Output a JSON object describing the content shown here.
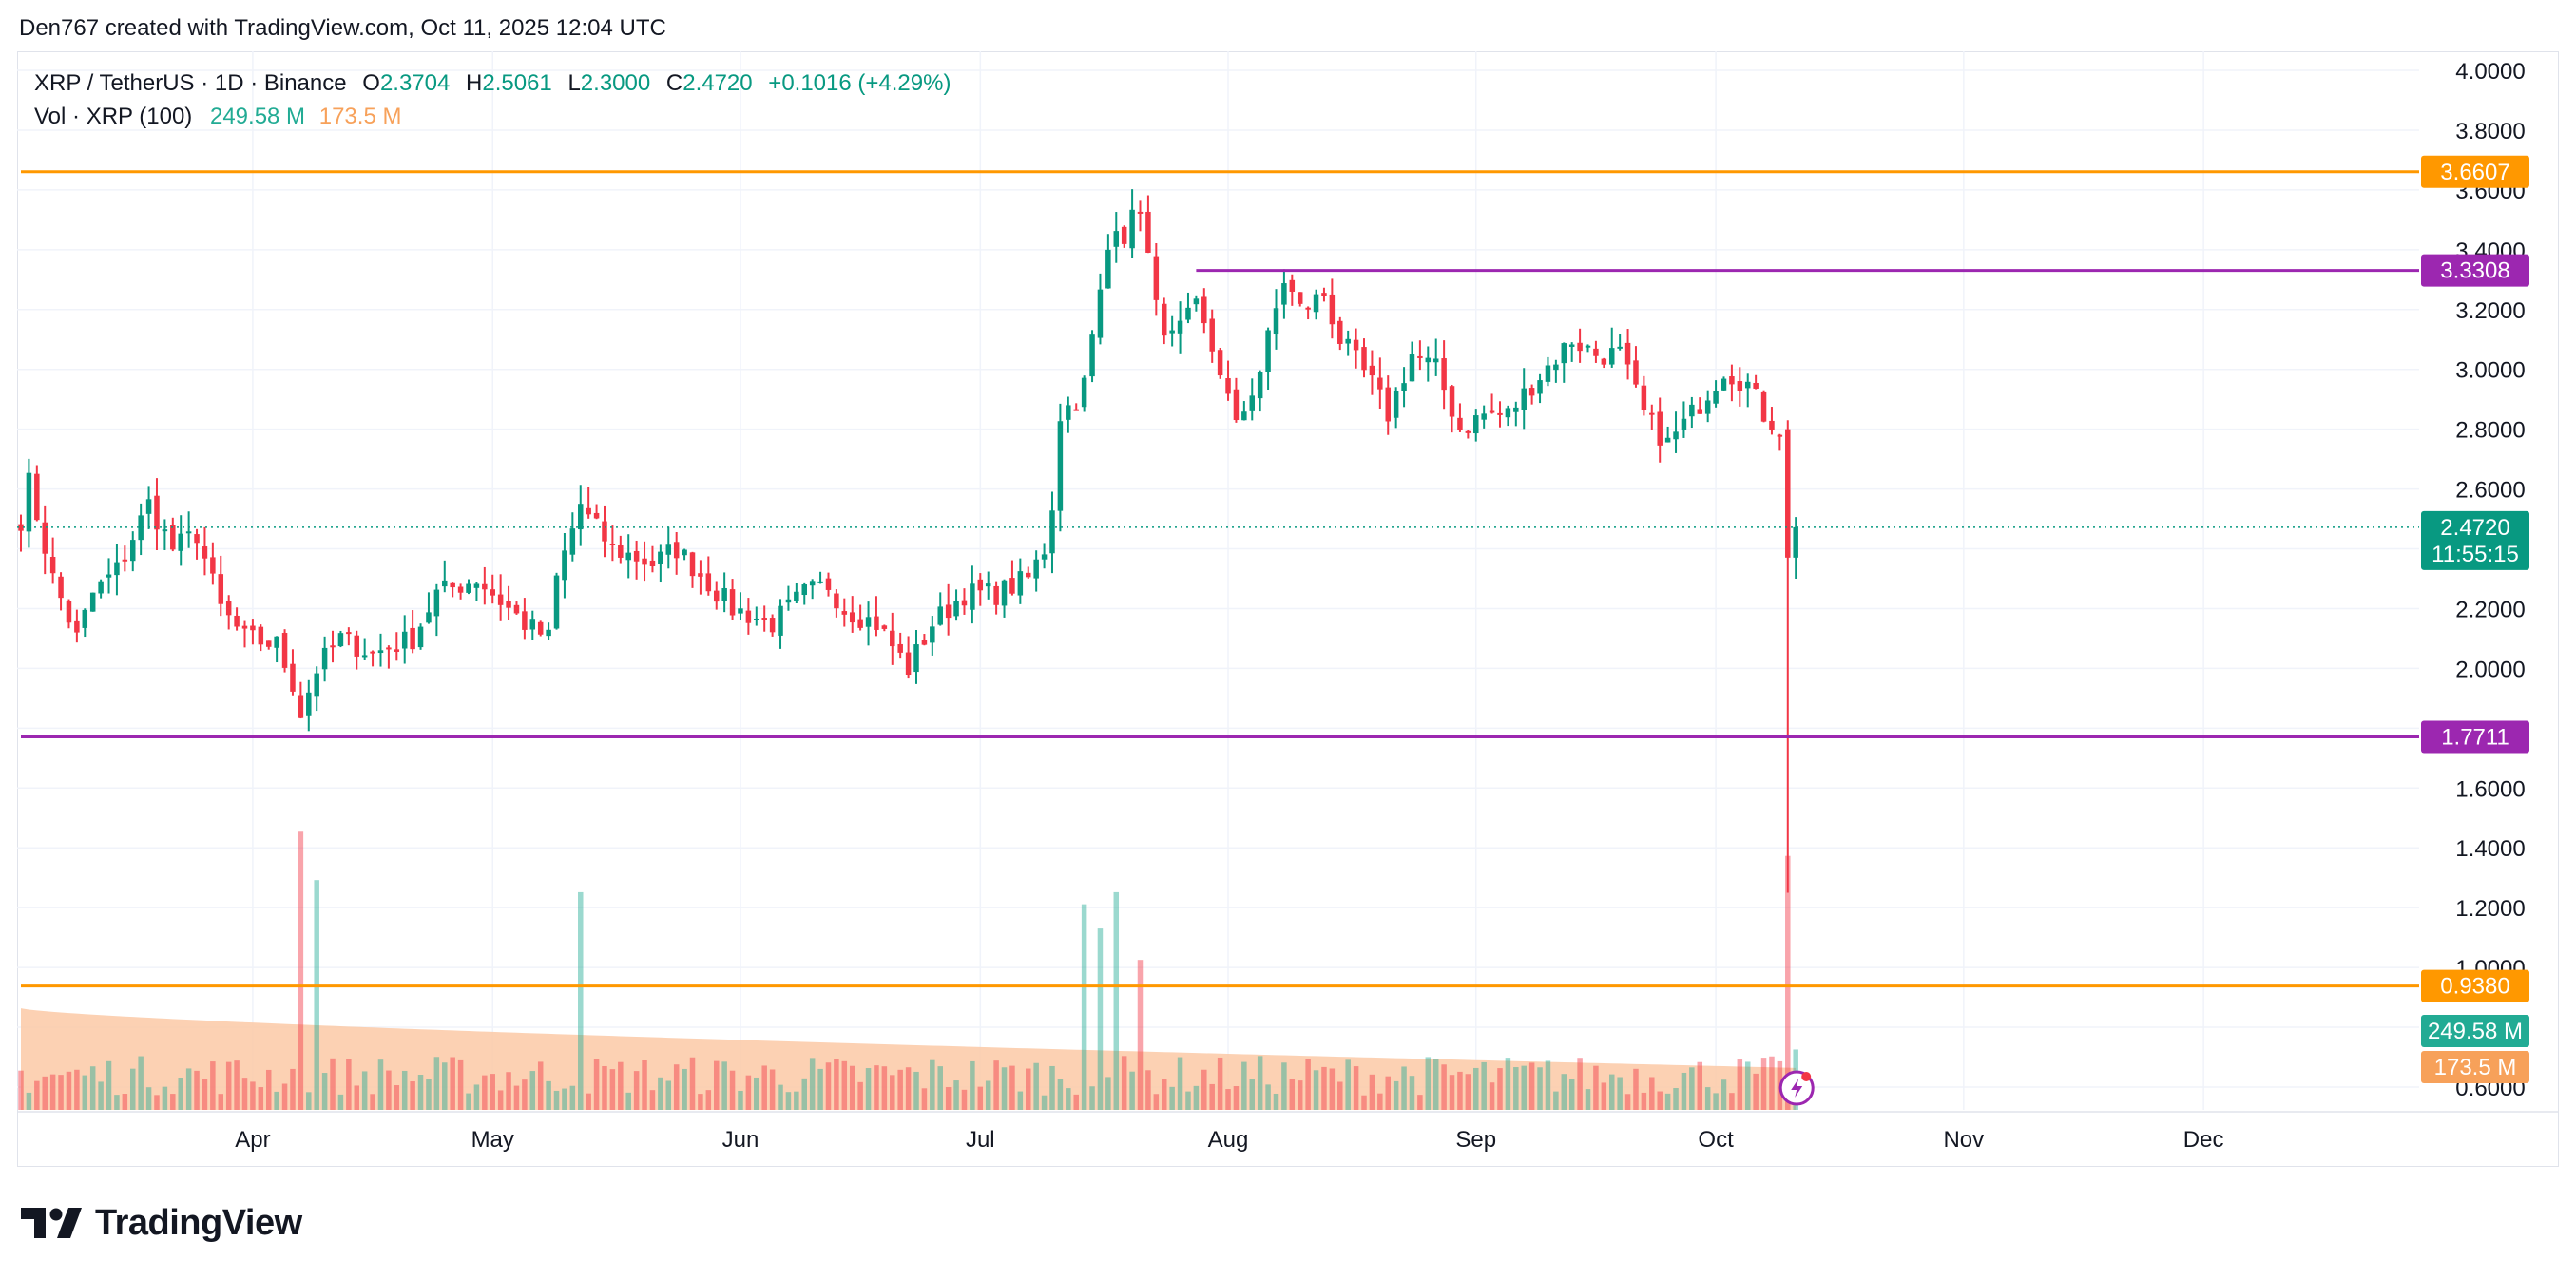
{
  "header": {
    "credit": "Den767 created with TradingView.com, Oct 11, 2025 12:04 UTC"
  },
  "legend": {
    "symbol": "XRP / TetherUS · 1D · Binance",
    "o_label": "O",
    "o_value": "2.3704",
    "h_label": "H",
    "h_value": "2.5061",
    "l_label": "L",
    "l_value": "2.3000",
    "c_label": "C",
    "c_value": "2.4720",
    "change": "+0.1016 (+4.29%)",
    "vol_label": "Vol · XRP (100)",
    "vol_value": "249.58 M",
    "vol_ma_value": "173.5 M"
  },
  "brand": {
    "name": "TradingView"
  },
  "colors": {
    "up": "#089981",
    "down": "#f23645",
    "orange_line": "#ff9800",
    "purple_line": "#9c27b0",
    "volume_ma_fill": "#fbc9a6"
  },
  "chart_data": {
    "type": "candlestick",
    "symbol": "XRPUSDT",
    "interval": "1D",
    "y_axis_ticks": [
      "4.0000",
      "3.8000",
      "3.6000",
      "3.4000",
      "3.2000",
      "3.0000",
      "2.8000",
      "2.6000",
      "2.4000",
      "2.2000",
      "2.0000",
      "1.8000",
      "1.6000",
      "1.4000",
      "1.2000",
      "1.0000",
      "0.8000",
      "0.6000"
    ],
    "y_axis_values": [
      4.0,
      3.8,
      3.6,
      3.4,
      3.2,
      3.0,
      2.8,
      2.6,
      2.4,
      2.2,
      2.0,
      1.8,
      1.6,
      1.4,
      1.2,
      1.0,
      0.8,
      0.6
    ],
    "ylim": [
      0.6,
      4.0
    ],
    "x_axis_ticks": [
      "Apr",
      "May",
      "Jun",
      "Jul",
      "Aug",
      "Sep",
      "Oct",
      "Nov",
      "Dec"
    ],
    "x_axis_dates": [
      "2025-04-01",
      "2025-05-01",
      "2025-06-01",
      "2025-07-01",
      "2025-08-01",
      "2025-09-01",
      "2025-10-01",
      "2025-11-01",
      "2025-12-01"
    ],
    "first_date": "2025-03-03",
    "last_date": "2025-10-11",
    "xlim": [
      "2025-03-03",
      "2025-12-25"
    ],
    "horizontal_levels": [
      {
        "value": 3.6607,
        "label": "3.6607",
        "color": "#ff9800",
        "start_date": "2025-03-03"
      },
      {
        "value": 3.3308,
        "label": "3.3308",
        "color": "#9c27b0",
        "start_date": "2025-07-28"
      },
      {
        "value": 1.7711,
        "label": "1.7711",
        "color": "#9c27b0",
        "start_date": "2025-03-03"
      },
      {
        "value": 0.938,
        "label": "0.9380",
        "color": "#ff9800",
        "start_date": "2025-03-03"
      }
    ],
    "last_price": {
      "value": 2.472,
      "label": "2.4720",
      "countdown": "11:55:15",
      "color": "#089981"
    },
    "volume_badge": {
      "label": "249.58 M",
      "color": "#22ab94"
    },
    "volume_ma_badge": {
      "label": "173.5 M",
      "color": "#f7a15a"
    },
    "anchor_closes": [
      [
        "2025-03-03",
        2.5
      ],
      [
        "2025-03-04",
        2.62
      ],
      [
        "2025-03-07",
        2.3
      ],
      [
        "2025-03-10",
        2.1
      ],
      [
        "2025-03-12",
        2.25
      ],
      [
        "2025-03-15",
        2.33
      ],
      [
        "2025-03-19",
        2.55
      ],
      [
        "2025-03-22",
        2.4
      ],
      [
        "2025-03-25",
        2.45
      ],
      [
        "2025-03-28",
        2.2
      ],
      [
        "2025-03-31",
        2.1
      ],
      [
        "2025-04-04",
        2.08
      ],
      [
        "2025-04-06",
        1.95
      ],
      [
        "2025-04-07",
        1.85
      ],
      [
        "2025-04-09",
        2.0
      ],
      [
        "2025-04-12",
        2.1
      ],
      [
        "2025-04-16",
        2.05
      ],
      [
        "2025-04-21",
        2.1
      ],
      [
        "2025-04-24",
        2.25
      ],
      [
        "2025-04-29",
        2.3
      ],
      [
        "2025-05-05",
        2.15
      ],
      [
        "2025-05-08",
        2.1
      ],
      [
        "2025-05-09",
        2.3
      ],
      [
        "2025-05-12",
        2.55
      ],
      [
        "2025-05-13",
        2.5
      ],
      [
        "2025-05-16",
        2.4
      ],
      [
        "2025-05-21",
        2.35
      ],
      [
        "2025-05-24",
        2.4
      ],
      [
        "2025-05-31",
        2.2
      ],
      [
        "2025-06-05",
        2.15
      ],
      [
        "2025-06-09",
        2.25
      ],
      [
        "2025-06-12",
        2.28
      ],
      [
        "2025-06-14",
        2.2
      ],
      [
        "2025-06-18",
        2.15
      ],
      [
        "2025-06-22",
        2.0
      ],
      [
        "2025-06-25",
        2.15
      ],
      [
        "2025-06-29",
        2.25
      ],
      [
        "2025-07-03",
        2.25
      ],
      [
        "2025-07-07",
        2.3
      ],
      [
        "2025-07-09",
        2.4
      ],
      [
        "2025-07-10",
        2.55
      ],
      [
        "2025-07-11",
        2.85
      ],
      [
        "2025-07-13",
        2.9
      ],
      [
        "2025-07-14",
        2.95
      ],
      [
        "2025-07-17",
        3.4
      ],
      [
        "2025-07-18",
        3.5
      ],
      [
        "2025-07-19",
        3.45
      ],
      [
        "2025-07-21",
        3.55
      ],
      [
        "2025-07-23",
        3.2
      ],
      [
        "2025-07-25",
        3.1
      ],
      [
        "2025-07-28",
        3.2
      ],
      [
        "2025-07-31",
        3.0
      ],
      [
        "2025-08-02",
        2.8
      ],
      [
        "2025-08-05",
        3.0
      ],
      [
        "2025-08-08",
        3.3
      ],
      [
        "2025-08-10",
        3.2
      ],
      [
        "2025-08-13",
        3.25
      ],
      [
        "2025-08-15",
        3.1
      ],
      [
        "2025-08-19",
        2.95
      ],
      [
        "2025-08-21",
        2.85
      ],
      [
        "2025-08-24",
        3.05
      ],
      [
        "2025-08-27",
        3.0
      ],
      [
        "2025-08-30",
        2.8
      ],
      [
        "2025-09-02",
        2.85
      ],
      [
        "2025-09-05",
        2.85
      ],
      [
        "2025-09-08",
        2.95
      ],
      [
        "2025-09-13",
        3.1
      ],
      [
        "2025-09-16",
        3.05
      ],
      [
        "2025-09-19",
        3.05
      ],
      [
        "2025-09-22",
        2.85
      ],
      [
        "2025-09-25",
        2.75
      ],
      [
        "2025-09-28",
        2.85
      ],
      [
        "2025-10-02",
        3.0
      ],
      [
        "2025-10-05",
        2.95
      ],
      [
        "2025-10-07",
        2.85
      ],
      [
        "2025-10-09",
        2.8
      ],
      [
        "2025-10-10",
        2.37
      ],
      [
        "2025-10-11",
        2.472
      ]
    ],
    "last_candle": {
      "date": "2025-10-11",
      "open": 2.3704,
      "high": 2.5061,
      "low": 2.3,
      "close": 2.472,
      "volume_m": 249.58
    },
    "crash_candle": {
      "date": "2025-10-10",
      "open": 2.8,
      "high": 2.83,
      "low": 1.25,
      "close": 2.3704
    },
    "volume": {
      "scale_max_m": 1100,
      "baseline_m": 150,
      "spikes": [
        [
          "2025-04-07",
          1150
        ],
        [
          "2025-04-09",
          950
        ],
        [
          "2025-05-12",
          900
        ],
        [
          "2025-07-14",
          850
        ],
        [
          "2025-07-18",
          900
        ],
        [
          "2025-07-16",
          750
        ],
        [
          "2025-07-21",
          620
        ],
        [
          "2025-10-10",
          1050
        ],
        [
          "2025-10-11",
          249.58
        ]
      ],
      "ma_start_m": 420,
      "ma_end_m": 173.5
    }
  }
}
